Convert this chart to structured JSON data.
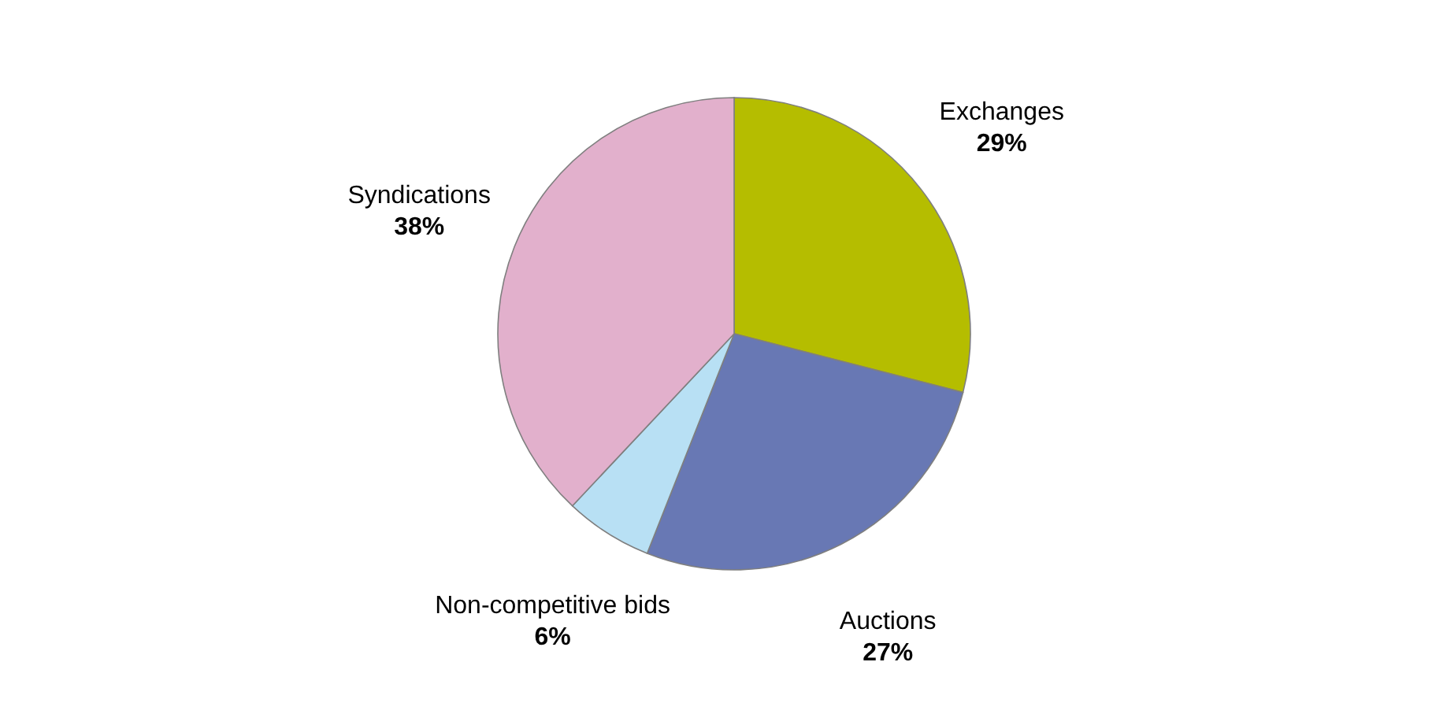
{
  "chart_data": {
    "type": "pie",
    "categories": [
      "Exchanges",
      "Auctions",
      "Non-competitive bids",
      "Syndications"
    ],
    "values": [
      29,
      27,
      6,
      38
    ],
    "value_labels": [
      "29%",
      "27%",
      "6%",
      "38%"
    ],
    "colors": [
      "#b5bd00",
      "#6878b4",
      "#b8e0f4",
      "#e2b0cc"
    ]
  }
}
